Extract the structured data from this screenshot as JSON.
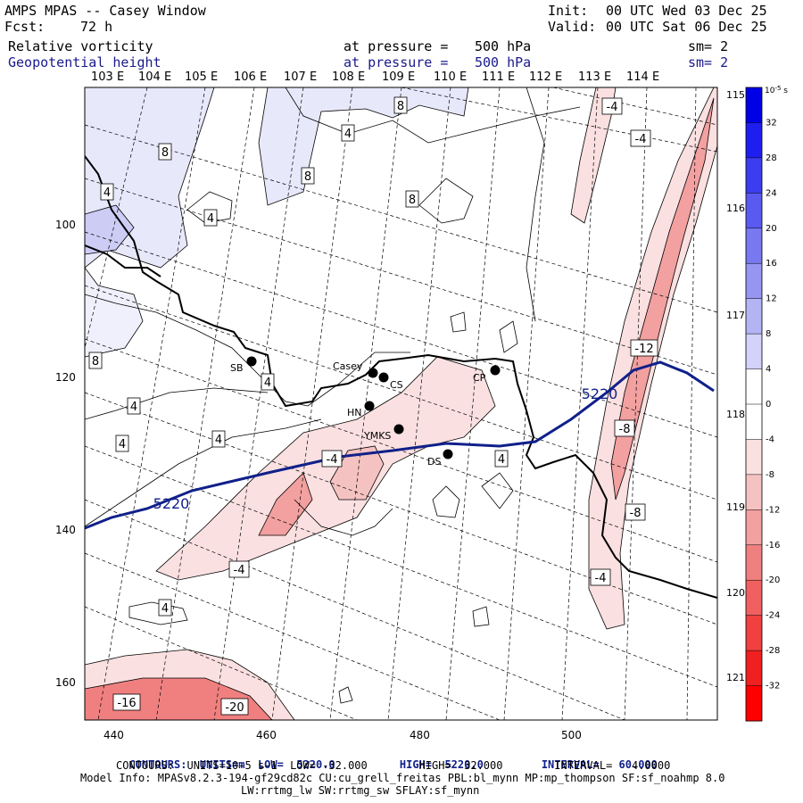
{
  "header": {
    "model_line": "AMPS MPAS -- Casey Window",
    "forecast_label": "Fcst:",
    "forecast_hours": "72 h",
    "init_label": "Init:",
    "init_time": "00 UTC Wed 03 Dec 25",
    "valid_label": "Valid:",
    "valid_time": "00 UTC Sat 06 Dec 25"
  },
  "fields": [
    {
      "name": "Relative vorticity",
      "pressure_text": "at pressure =",
      "pressure": "500 hPa",
      "smoothing": "sm= 2"
    },
    {
      "name": "Geopotential height",
      "pressure_text": "at pressure =",
      "pressure": "500 hPa",
      "smoothing": "sm= 2"
    }
  ],
  "top_longitudes": [
    "103 E",
    "104 E",
    "105 E",
    "106 E",
    "107 E",
    "108 E",
    "109 E",
    "110 E",
    "111 E",
    "112 E",
    "113 E",
    "114 E"
  ],
  "right_longitudes": [
    "115 E",
    "116 E",
    "117 E",
    "118 E",
    "119 E",
    "120 E",
    "121 E"
  ],
  "x_ticks": [
    "440",
    "460",
    "480",
    "500"
  ],
  "y_ticks": [
    "100",
    "120",
    "140",
    "160"
  ],
  "stations": [
    {
      "name": "SB"
    },
    {
      "name": "Casey"
    },
    {
      "name": "CS"
    },
    {
      "name": "HN"
    },
    {
      "name": "YMKS"
    },
    {
      "name": "DS"
    },
    {
      "name": "CP"
    }
  ],
  "contour_labels": {
    "vort_pos": [
      "8",
      "4",
      "8",
      "8",
      "4",
      "8",
      "4",
      "8",
      "4",
      "4",
      "4",
      "4",
      "4",
      "4"
    ],
    "vort_neg": [
      "-4",
      "-4",
      "-12",
      "-8",
      "-4",
      "-8",
      "-4",
      "-4",
      "-16",
      "-20"
    ],
    "height": [
      "5220",
      "5220"
    ]
  },
  "colorbar": {
    "unit_exp": "10",
    "unit_sup": "-5",
    "unit_suffix": "s",
    "labels": [
      "32",
      "28",
      "24",
      "20",
      "16",
      "12",
      "8",
      "4",
      "0",
      "-4",
      "-8",
      "-12",
      "-16",
      "-20",
      "-24",
      "-28",
      "-32"
    ],
    "colors": [
      "#0000e6",
      "#1e1ef0",
      "#3c3cf0",
      "#5a5af0",
      "#7878f0",
      "#9696f2",
      "#b4b4f5",
      "#d2d2fa",
      "#ffffff",
      "#ffffff",
      "#fae0e0",
      "#f5c2c2",
      "#f2a0a0",
      "#f08080",
      "#f06060",
      "#f04040",
      "#f02020",
      "#ff0000"
    ]
  },
  "footer": {
    "line1_label": "CONTOURS:  UNITS=m  LOW=  5220.0          HIGH=  5220.0         INTERVAL=   60.000",
    "line2_label": "CONTOURS:  UNITS=10-5 s-1  LOW= -32.000        HIGH=  32.000        INTERVAL=   4.0000",
    "line3": "Model Info: MPASv8.2.3-194-gf29cd82c CU:cu_grell_freitas PBL:bl_mynn MP:mp_thompson SF:sf_noahmp 8.0",
    "line4": "LW:rrtmg_lw SW:rrtmg_sw SFLAY:sf_mynn"
  }
}
